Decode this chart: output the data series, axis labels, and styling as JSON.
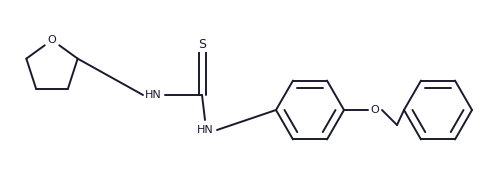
{
  "bg_color": "#ffffff",
  "line_color": "#1a1a2e",
  "line_width": 1.4,
  "figsize": [
    4.88,
    1.82
  ],
  "dpi": 100,
  "xlim": [
    0,
    4.88
  ],
  "ylim": [
    0,
    1.82
  ]
}
